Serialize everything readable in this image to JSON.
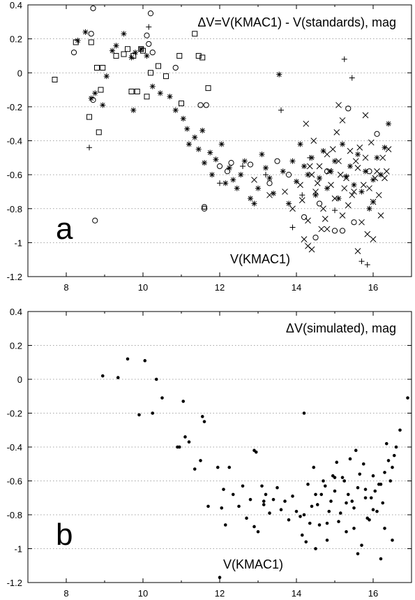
{
  "chart_data": [
    {
      "type": "scatter",
      "panel_label": "a",
      "title": "ΔV=V(KMAC1) - V(standards), mag",
      "xlabel": "V(KMAC1)",
      "ylabel": "",
      "xlim": [
        7,
        17
      ],
      "ylim": [
        -1.2,
        0.4
      ],
      "xticks": [
        8,
        10,
        12,
        14,
        16
      ],
      "yticks": [
        -1.2,
        -1,
        -0.8,
        -0.6,
        -0.4,
        -0.2,
        0,
        0.2,
        0.4
      ],
      "ytick_labels": [
        "-1.2",
        "-1",
        "-0.8",
        "-0.6",
        "-0.4",
        "-0.2",
        "0",
        "0.2",
        "0.4"
      ],
      "xtick_labels": [
        "8",
        "10",
        "12",
        "14",
        "16"
      ],
      "grid": "horizontal dotted",
      "series": [
        {
          "marker": "square",
          "x": [
            7.7,
            8.25,
            8.6,
            8.65,
            8.8,
            8.85,
            8.9,
            8.95,
            9.3,
            9.5,
            9.6,
            9.7,
            9.75,
            9.85,
            9.95,
            10.0,
            10.1,
            10.2,
            10.4,
            10.6,
            10.95,
            11.0,
            11.35,
            11.45,
            11.55,
            11.7
          ],
          "y": [
            -0.04,
            0.18,
            -0.26,
            0.18,
            0.03,
            -0.35,
            -0.1,
            0.03,
            0.1,
            0.11,
            0.14,
            -0.11,
            0.1,
            -0.11,
            0.14,
            0.13,
            -0.14,
            0.0,
            0.04,
            -0.02,
            0.1,
            -0.18,
            0.23,
            0.1,
            0.09,
            -0.09
          ]
        },
        {
          "marker": "circle",
          "x": [
            8.2,
            8.65,
            8.7,
            8.7,
            8.75,
            10.1,
            10.15,
            10.2,
            10.25,
            10.85,
            11.5,
            11.6,
            11.6,
            11.65,
            12.0,
            12.2,
            12.3,
            12.8,
            13.3,
            13.5,
            13.8,
            14.2,
            14.5,
            14.6,
            14.8,
            15.0,
            15.2,
            15.35,
            15.5,
            15.9,
            16.1
          ],
          "y": [
            0.12,
            0.23,
            0.38,
            -0.16,
            -0.87,
            0.22,
            0.17,
            0.35,
            0.12,
            0.03,
            -0.19,
            -0.79,
            -0.8,
            -0.19,
            -0.55,
            -0.58,
            -0.53,
            -0.54,
            -0.65,
            -0.52,
            -0.6,
            -0.85,
            -0.97,
            -0.77,
            -0.58,
            -0.93,
            -0.93,
            -0.21,
            -0.88,
            -0.58,
            -0.36
          ]
        },
        {
          "marker": "asterisk",
          "x": [
            8.3,
            8.5,
            8.65,
            8.75,
            8.95,
            9.05,
            9.2,
            9.3,
            9.5,
            9.7,
            9.75,
            9.8,
            9.95,
            10.1,
            10.25,
            10.45,
            10.7,
            10.85,
            11.05,
            11.15,
            11.2,
            11.35,
            11.45,
            11.55,
            11.6,
            11.75,
            11.8,
            11.9,
            12.05,
            12.15,
            12.25,
            12.35,
            12.45,
            12.55,
            12.65,
            12.8,
            12.9,
            13.0,
            13.1,
            13.2,
            13.3,
            13.4,
            13.55,
            13.65,
            13.8,
            13.9,
            14.0,
            14.1,
            14.2,
            14.3,
            14.4,
            14.5,
            14.6,
            14.7,
            14.8,
            14.9,
            15.0,
            15.1,
            15.2,
            15.3,
            15.4,
            15.5,
            15.6,
            15.7,
            15.8,
            15.9,
            16.0,
            16.1,
            16.2,
            16.3,
            16.4
          ],
          "y": [
            0.19,
            0.24,
            -0.15,
            -0.12,
            -0.19,
            -0.02,
            0.13,
            0.16,
            0.23,
            0.09,
            -0.22,
            0.12,
            0.14,
            0.1,
            -0.08,
            -0.12,
            -0.14,
            -0.22,
            -0.27,
            -0.33,
            -0.42,
            -0.38,
            -0.45,
            -0.34,
            -0.53,
            -0.47,
            -0.6,
            -0.51,
            -0.42,
            -0.65,
            -0.56,
            -0.63,
            -0.68,
            -0.6,
            -0.52,
            -0.74,
            -0.77,
            -0.68,
            -0.48,
            -0.56,
            -0.62,
            -0.71,
            -0.01,
            -0.58,
            -0.77,
            -0.52,
            -0.64,
            -0.42,
            -0.55,
            -0.6,
            -0.5,
            -0.72,
            -0.62,
            -0.46,
            -0.68,
            -0.58,
            -0.52,
            -0.74,
            -0.42,
            -0.61,
            -0.55,
            -0.66,
            -0.48,
            -0.7,
            -0.58,
            -0.8,
            -0.63,
            -0.5,
            -0.6,
            -0.44,
            -0.3
          ]
        },
        {
          "marker": "cross",
          "x": [
            12.9,
            13.3,
            13.7,
            13.9,
            14.1,
            14.2,
            14.3,
            14.4,
            14.5,
            14.6,
            14.7,
            14.8,
            14.9,
            15.0,
            15.1,
            15.2,
            15.3,
            15.4,
            15.5,
            15.6,
            15.7,
            15.8,
            15.9,
            16.0,
            16.1,
            16.2,
            16.3,
            16.4,
            14.25,
            14.45,
            14.65,
            14.85,
            15.05,
            15.25,
            15.45,
            15.65,
            15.85,
            16.05,
            16.25,
            14.15,
            14.35,
            14.55,
            14.75,
            14.95,
            15.15,
            15.35,
            15.55,
            15.75,
            15.95,
            16.15,
            16.35,
            14.4,
            14.8,
            15.2,
            15.6,
            16.0,
            14.3,
            15.1,
            15.8
          ],
          "y": [
            -0.63,
            -0.72,
            -0.7,
            -0.8,
            -0.66,
            -0.98,
            -1.02,
            -0.6,
            -0.7,
            -0.55,
            -0.8,
            -0.48,
            -0.66,
            -0.74,
            -0.52,
            -0.84,
            -0.62,
            -0.46,
            -0.7,
            -0.56,
            -0.88,
            -0.5,
            -0.68,
            -0.76,
            -0.58,
            -0.84,
            -0.62,
            -0.45,
            -0.3,
            -0.4,
            -0.92,
            -0.58,
            -0.35,
            -0.68,
            -0.72,
            -0.44,
            -0.95,
            -0.62,
            -0.5,
            -0.75,
            -0.55,
            -0.65,
            -0.86,
            -0.45,
            -0.6,
            -0.78,
            -0.52,
            -0.66,
            -0.41,
            -0.72,
            -0.58,
            -1.04,
            -0.92,
            -0.28,
            -1.05,
            -0.98,
            -0.87,
            -0.19,
            -0.25
          ]
        },
        {
          "marker": "plus",
          "x": [
            8.6,
            10.15,
            12.0,
            13.6,
            13.9,
            14.15,
            14.35,
            15.0,
            15.25,
            15.45,
            15.7,
            15.85,
            16.0,
            13.2,
            12.6
          ],
          "y": [
            -0.44,
            0.27,
            -0.65,
            -0.22,
            -0.91,
            -0.72,
            -0.5,
            -0.81,
            0.08,
            -0.03,
            -1.11,
            -1.13,
            -0.76,
            -0.6,
            -0.55
          ]
        }
      ]
    },
    {
      "type": "scatter",
      "panel_label": "b",
      "title": "ΔV(simulated), mag",
      "xlabel": "V(KMAC1)",
      "ylabel": "",
      "xlim": [
        7,
        17
      ],
      "ylim": [
        -1.2,
        0.4
      ],
      "xticks": [
        8,
        10,
        12,
        14,
        16
      ],
      "yticks": [
        -1.2,
        -1,
        -0.8,
        -0.6,
        -0.4,
        -0.2,
        0,
        0.2,
        0.4
      ],
      "ytick_labels": [
        "-1.2",
        "-1",
        "-0.8",
        "-0.6",
        "-0.4",
        "-0.2",
        "0",
        "0.2",
        "0.4"
      ],
      "xtick_labels": [
        "8",
        "10",
        "12",
        "14",
        "16"
      ],
      "grid": "horizontal dotted",
      "series": [
        {
          "marker": "dot",
          "x": [
            8.95,
            9.35,
            9.6,
            9.9,
            10.05,
            10.25,
            10.35,
            10.5,
            10.9,
            10.95,
            11.05,
            11.1,
            11.2,
            11.35,
            11.5,
            11.55,
            11.6,
            11.7,
            11.95,
            12.05,
            12.1,
            12.15,
            12.25,
            12.35,
            12.5,
            12.6,
            12.7,
            12.8,
            12.9,
            12.95,
            13.0,
            13.1,
            13.15,
            13.2,
            13.3,
            13.4,
            13.5,
            13.6,
            13.7,
            13.8,
            13.9,
            14.0,
            14.1,
            14.15,
            14.2,
            14.3,
            14.4,
            14.5,
            14.6,
            14.7,
            14.8,
            14.9,
            15.0,
            15.1,
            15.2,
            15.3,
            15.4,
            15.5,
            15.6,
            15.7,
            15.8,
            15.9,
            16.0,
            16.1,
            16.2,
            16.3,
            16.4,
            16.5,
            16.6,
            16.7,
            16.9,
            14.25,
            14.45,
            14.65,
            14.85,
            15.05,
            15.25,
            15.45,
            15.65,
            15.85,
            16.05,
            16.25,
            16.45,
            14.35,
            14.55,
            14.75,
            14.95,
            15.15,
            15.35,
            15.55,
            15.75,
            15.95,
            16.15,
            16.35,
            16.55,
            14.5,
            15.0,
            15.5,
            16.0,
            16.5,
            14.8,
            15.3,
            15.8,
            16.3,
            14.2,
            15.6,
            16.2,
            12.9,
            13.15,
            12.0
          ],
          "y": [
            0.02,
            0.01,
            0.12,
            -0.21,
            0.11,
            -0.2,
            0.0,
            -0.11,
            -0.4,
            -0.4,
            -0.13,
            -0.34,
            -0.37,
            -0.53,
            -0.48,
            -0.22,
            -0.25,
            -0.75,
            -0.52,
            -0.76,
            -0.65,
            -0.86,
            -0.52,
            -0.68,
            -0.75,
            -0.63,
            -0.82,
            -0.71,
            -0.87,
            -0.43,
            -0.9,
            -0.63,
            -0.72,
            -0.68,
            -0.79,
            -0.71,
            -0.64,
            -0.77,
            -0.72,
            -0.83,
            -0.69,
            -0.78,
            -0.81,
            -0.92,
            -0.2,
            -0.62,
            -0.75,
            -0.68,
            -0.86,
            -0.6,
            -0.95,
            -0.72,
            -0.66,
            -0.84,
            -0.58,
            -0.9,
            -0.47,
            -0.76,
            -0.64,
            -0.98,
            -0.7,
            -0.83,
            -0.57,
            -0.78,
            -0.62,
            -0.88,
            -0.48,
            -0.52,
            -0.4,
            -0.3,
            -0.11,
            -0.96,
            -0.52,
            -0.68,
            -0.78,
            -0.49,
            -0.6,
            -0.72,
            -0.56,
            -0.82,
            -0.66,
            -0.73,
            -0.6,
            -0.85,
            -0.74,
            -0.63,
            -0.57,
            -0.79,
            -0.68,
            -0.42,
            -0.5,
            -0.7,
            -0.62,
            -0.38,
            -0.45,
            -1.0,
            -0.58,
            -0.88,
            -0.77,
            -0.95,
            -0.85,
            -0.73,
            -0.65,
            -0.55,
            -0.8,
            -1.03,
            -1.06,
            -0.42,
            -0.74,
            -1.17
          ]
        }
      ]
    }
  ]
}
